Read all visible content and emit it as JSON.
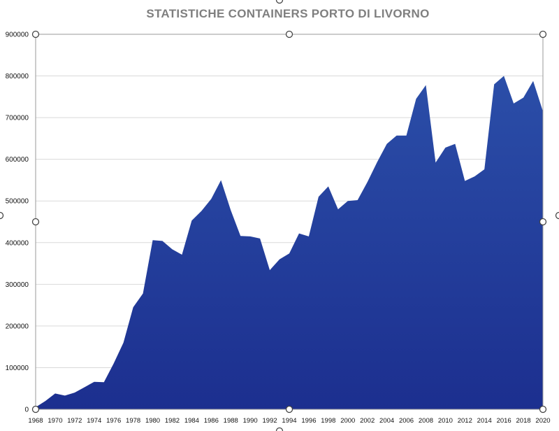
{
  "chart_data": {
    "type": "area",
    "title": "STATISTICHE CONTAINERS PORTO DI LIVORNO",
    "xlabel": "",
    "ylabel": "",
    "ylim": [
      0,
      900000
    ],
    "yticks": [
      "0",
      "100000",
      "200000",
      "300000",
      "400000",
      "500000",
      "600000",
      "700000",
      "800000",
      "900000"
    ],
    "xticks": [
      "1968",
      "1970",
      "1972",
      "1974",
      "1976",
      "1978",
      "1980",
      "1982",
      "1984",
      "1986",
      "1988",
      "1990",
      "1992",
      "1994",
      "1996",
      "1998",
      "2000",
      "2002",
      "2004",
      "2006",
      "2008",
      "2010",
      "2012",
      "2014",
      "2016",
      "2018",
      "2020"
    ],
    "grid": true,
    "legend": "none",
    "fill_color_top": "#2b4ea8",
    "fill_color_bottom": "#1c2f8f",
    "x": [
      1968,
      1969,
      1970,
      1971,
      1972,
      1973,
      1974,
      1975,
      1976,
      1977,
      1978,
      1979,
      1980,
      1981,
      1982,
      1983,
      1984,
      1985,
      1986,
      1987,
      1988,
      1989,
      1990,
      1991,
      1992,
      1993,
      1994,
      1995,
      1996,
      1997,
      1998,
      1999,
      2000,
      2001,
      2002,
      2003,
      2004,
      2005,
      2006,
      2007,
      2008,
      2009,
      2010,
      2011,
      2012,
      2013,
      2014,
      2015,
      2016,
      2017,
      2018,
      2019,
      2020
    ],
    "values": [
      5000,
      20000,
      38000,
      33000,
      40000,
      53000,
      66000,
      65000,
      110000,
      160000,
      245000,
      278000,
      406000,
      404000,
      384000,
      371000,
      453000,
      476000,
      505000,
      550000,
      478000,
      416000,
      415000,
      410000,
      334000,
      360000,
      374000,
      422000,
      415000,
      510000,
      535000,
      480000,
      500000,
      502000,
      545000,
      593000,
      637000,
      657000,
      657000,
      745000,
      778000,
      592000,
      628000,
      637000,
      548000,
      559000,
      576000,
      780000,
      800000,
      734000,
      748000,
      788000,
      715000
    ]
  }
}
